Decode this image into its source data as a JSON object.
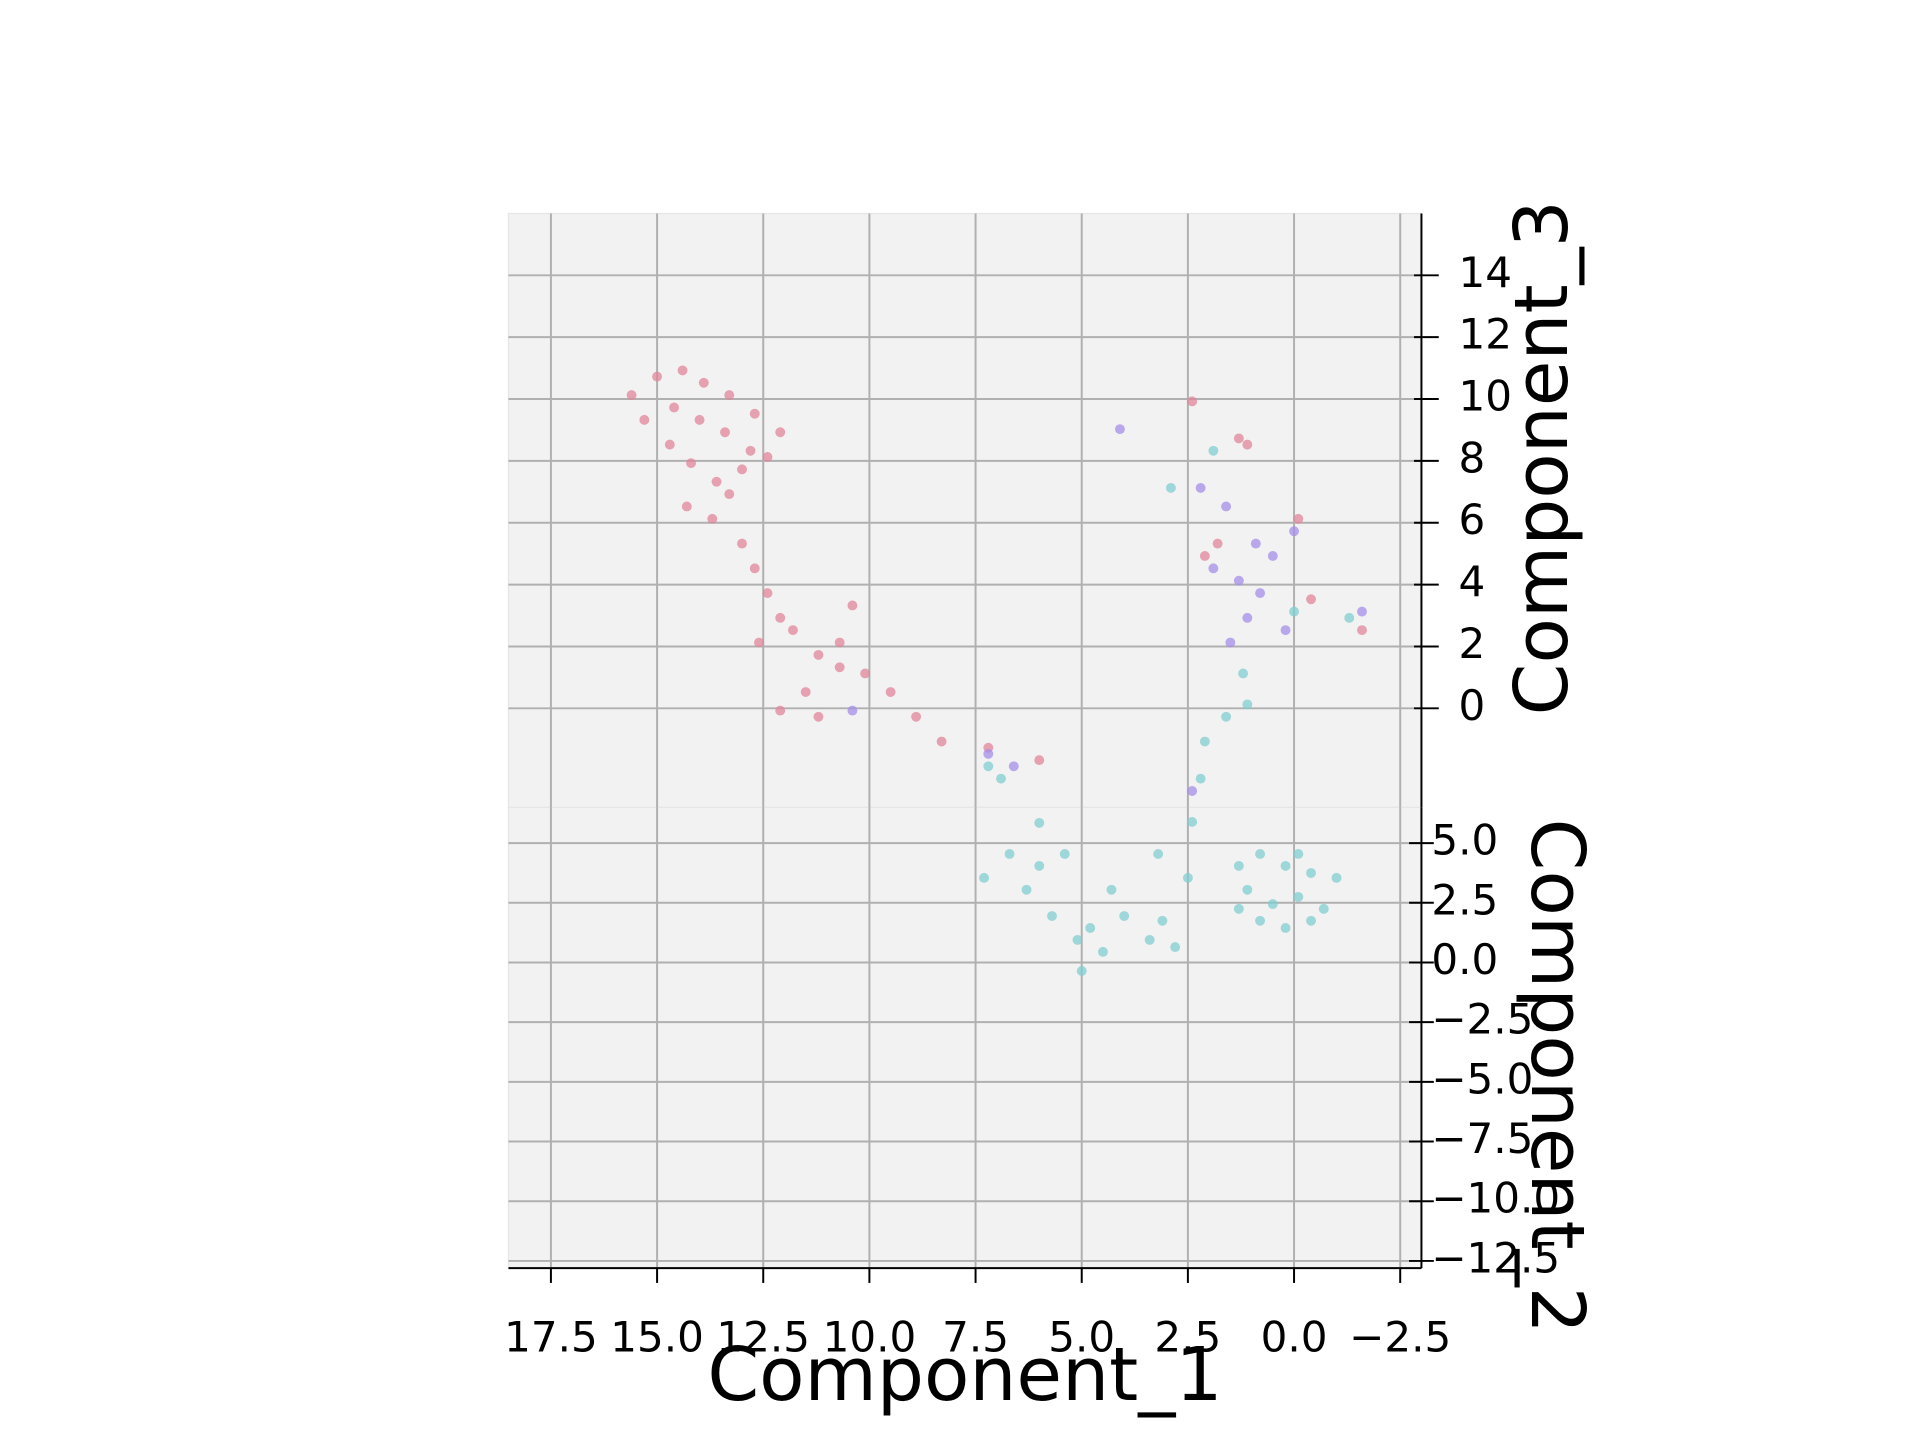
{
  "chart_data": {
    "type": "scatter3d",
    "xlabel": "Component_1",
    "ylabel": "Component_2",
    "zlabel": "Component_3",
    "xlim": [
      -3,
      18.5
    ],
    "ylim": [
      -12.8,
      6.5
    ],
    "zlim": [
      -3.2,
      16
    ],
    "xticks": [
      {
        "value": 17.5,
        "label": "17.5"
      },
      {
        "value": 15,
        "label": "15.0"
      },
      {
        "value": 12.5,
        "label": "12.5"
      },
      {
        "value": 10,
        "label": "10.0"
      },
      {
        "value": 7.5,
        "label": "7.5"
      },
      {
        "value": 5,
        "label": "5.0"
      },
      {
        "value": 2.5,
        "label": "2.5"
      },
      {
        "value": 0,
        "label": "0.0"
      },
      {
        "value": -2.5,
        "label": "−2.5"
      }
    ],
    "yticks": [
      {
        "value": 5,
        "label": "5.0"
      },
      {
        "value": 2.5,
        "label": "2.5"
      },
      {
        "value": 0,
        "label": "0.0"
      },
      {
        "value": -2.5,
        "label": "−2.5"
      },
      {
        "value": -5,
        "label": "−5.0"
      },
      {
        "value": -7.5,
        "label": "−7.5"
      },
      {
        "value": -10,
        "label": "−10.0"
      },
      {
        "value": -12.5,
        "label": "−12.5"
      }
    ],
    "zticks": [
      0,
      2,
      4,
      6,
      8,
      10,
      12,
      14
    ],
    "grid": true,
    "series": [
      {
        "color": "#e0869a",
        "x": [
          15.6,
          15.0,
          14.4,
          13.9,
          13.3,
          12.7,
          12.1,
          15.3,
          14.6,
          14.0,
          13.4,
          12.8,
          14.7,
          14.2,
          13.6,
          13.0,
          12.4,
          14.3,
          13.7,
          13.3,
          13.0,
          12.7,
          12.4,
          12.1,
          12.6,
          11.8,
          11.2,
          10.7,
          10.1,
          11.5,
          12.1,
          11.2,
          10.4,
          10.7,
          9.5,
          8.9,
          8.3,
          7.2,
          6.0,
          2.4,
          1.3,
          2.1,
          -0.1,
          -1.6,
          -0.4,
          1.1,
          1.8
        ],
        "y": [
          2,
          2,
          2,
          2,
          2,
          2,
          2,
          2,
          2,
          2,
          2,
          2,
          2,
          2,
          2,
          2,
          2,
          2,
          2,
          2,
          2,
          2,
          2,
          2,
          2,
          2,
          2,
          2,
          2,
          2,
          2,
          2,
          2,
          2,
          2,
          2,
          2,
          2,
          2,
          2,
          2,
          2,
          2,
          2,
          2,
          2,
          2
        ],
        "z": [
          13.6,
          14.2,
          14.4,
          14.0,
          13.6,
          13.0,
          12.4,
          12.8,
          13.2,
          12.8,
          12.4,
          11.8,
          12.0,
          11.4,
          10.8,
          11.2,
          11.6,
          10.0,
          9.6,
          10.4,
          8.8,
          8.0,
          7.2,
          6.4,
          5.6,
          6.0,
          5.2,
          4.8,
          4.6,
          4.0,
          3.4,
          3.2,
          6.8,
          5.6,
          4.0,
          3.2,
          2.4,
          2.2,
          1.8,
          13.4,
          12.2,
          8.4,
          9.6,
          6.0,
          7.0,
          12.0,
          8.8
        ]
      },
      {
        "color": "#80cdd0",
        "x": [
          1.9,
          2.9,
          1.2,
          1.1,
          1.6,
          2.1,
          2.2,
          2.4,
          0.0,
          -1.3,
          7.2,
          6.9,
          7.3,
          6.7,
          6.0,
          5.4,
          6.3,
          5.7,
          5.1,
          4.5,
          4.8,
          4.0,
          3.4,
          2.8,
          3.1,
          1.3,
          0.8,
          0.2,
          -0.4,
          -1.0,
          1.1,
          0.5,
          -0.1,
          -0.7,
          0.8,
          0.2,
          1.3,
          -0.4,
          -0.1,
          4.3,
          2.5,
          3.2,
          5.0,
          6.0
        ],
        "y": [
          2,
          2,
          2,
          2,
          2,
          2,
          2,
          2,
          2,
          2,
          2,
          2,
          -0.6,
          0.4,
          -0.1,
          0.4,
          -1.1,
          -2.2,
          -3.2,
          -3.7,
          -2.7,
          -2.2,
          -3.2,
          -3.5,
          -2.4,
          -0.1,
          0.4,
          -0.1,
          -0.4,
          -0.6,
          -1.1,
          -1.7,
          -1.4,
          -1.9,
          -2.4,
          -2.7,
          -1.9,
          -2.4,
          0.4,
          -1.1,
          -0.6,
          0.4,
          -4.5,
          1.7
        ],
        "z": [
          11.8,
          10.6,
          4.6,
          3.6,
          3.2,
          2.4,
          1.2,
          -0.2,
          6.6,
          6.4,
          1.6,
          1.2,
          0,
          0,
          0,
          0,
          0,
          0,
          0,
          0,
          0,
          0,
          0,
          0,
          0,
          0,
          0,
          0,
          0,
          0,
          0,
          0,
          0,
          0,
          0,
          0,
          0,
          0,
          0,
          0,
          0,
          0,
          0,
          0
        ]
      },
      {
        "color": "#a58ee8",
        "x": [
          4.1,
          2.2,
          1.6,
          1.9,
          1.3,
          0.8,
          1.1,
          0.5,
          0.2,
          1.5,
          0.0,
          7.2,
          6.6,
          10.4,
          -1.6,
          2.4,
          0.9
        ],
        "y": [
          2,
          2,
          2,
          2,
          2,
          2,
          2,
          2,
          2,
          2,
          2,
          2,
          2,
          2,
          2,
          2,
          2
        ],
        "z": [
          12.5,
          10.6,
          10.0,
          8.0,
          7.6,
          7.2,
          6.4,
          8.4,
          6.0,
          5.6,
          9.2,
          2.0,
          1.6,
          3.4,
          6.6,
          0.8,
          8.8
        ]
      }
    ]
  }
}
